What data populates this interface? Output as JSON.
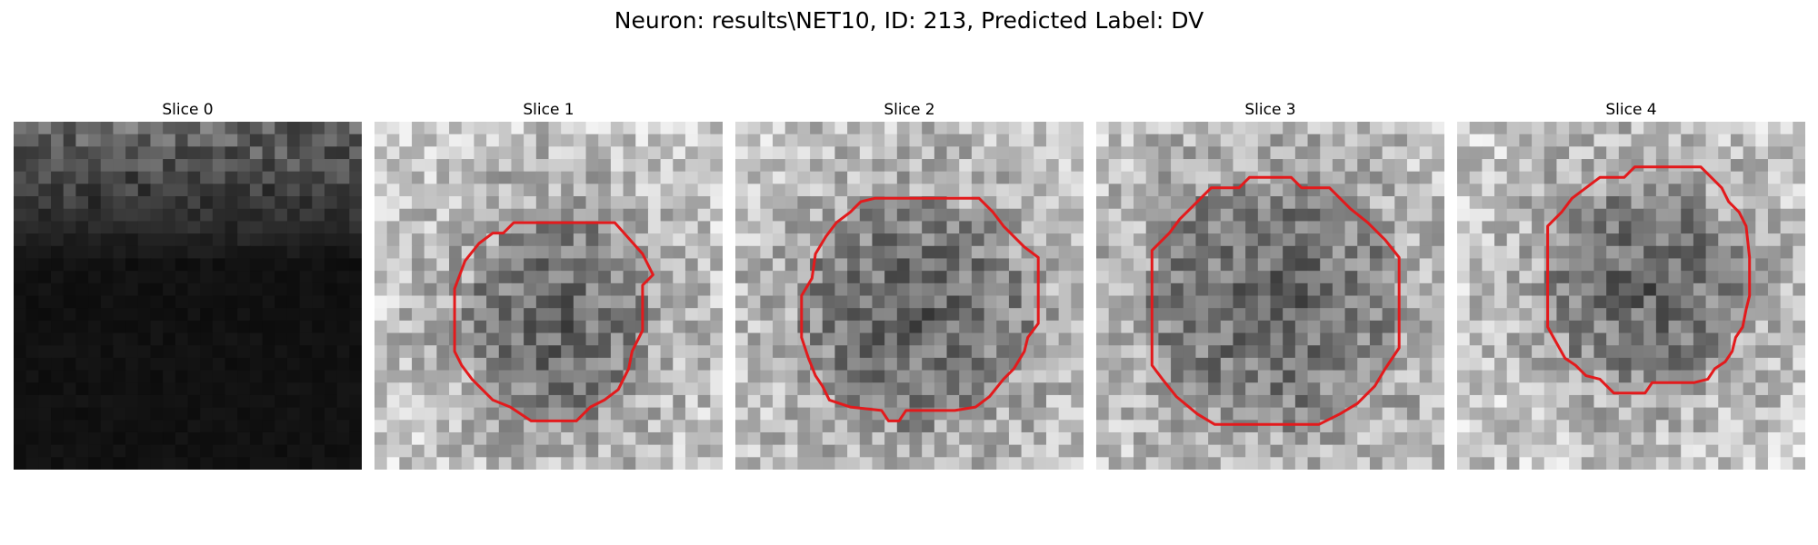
{
  "figure": {
    "title": "Neuron: results\\NET10, ID: 213, Predicted Label: DV",
    "panels": [
      {
        "title": "Slice 0",
        "contour": false,
        "style": "dark"
      },
      {
        "title": "Slice 1",
        "contour": true,
        "style": "light"
      },
      {
        "title": "Slice 2",
        "contour": true,
        "style": "light"
      },
      {
        "title": "Slice 3",
        "contour": true,
        "style": "light"
      },
      {
        "title": "Slice 4",
        "contour": true,
        "style": "light"
      }
    ],
    "contour_color": "#e31a1c",
    "colormap": "grayscale"
  }
}
